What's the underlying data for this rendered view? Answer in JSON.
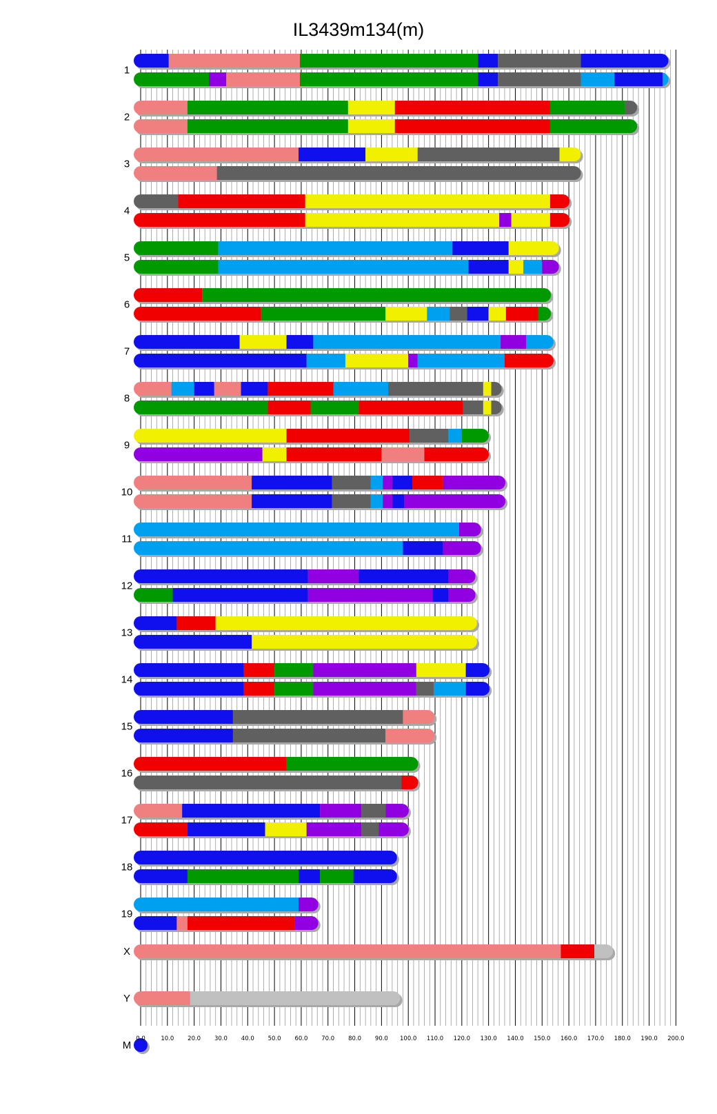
{
  "chart_data": {
    "type": "chromosome-painting",
    "title": "IL3439m134(m)",
    "xlim": [
      0,
      200
    ],
    "x_ticks": [
      "0.0",
      "10.0",
      "20.0",
      "30.0",
      "40.0",
      "50.0",
      "60.0",
      "70.0",
      "80.0",
      "90.0",
      "100.0",
      "110.0",
      "120.0",
      "130.0",
      "140.0",
      "150.0",
      "160.0",
      "170.0",
      "180.0",
      "190.0",
      "200.0"
    ],
    "palette": {
      "B": "#1010ee",
      "P": "#f08080",
      "G": "#009900",
      "D": "#606060",
      "C": "#00a0f0",
      "V": "#9000e0",
      "Y": "#f0f000",
      "R": "#f00000",
      "L": "#c0c0c0"
    },
    "chromosomes": [
      {
        "name": "1",
        "length": 197.2,
        "haplotypes": [
          [
            [
              "B",
              0,
              10.5
            ],
            [
              "P",
              10.5,
              59.5
            ],
            [
              "G",
              59.5,
              126
            ],
            [
              "B",
              126,
              133.5
            ],
            [
              "D",
              133.5,
              164.5
            ],
            [
              "B",
              164.5,
              197.2
            ]
          ],
          [
            [
              "G",
              0,
              25.5
            ],
            [
              "V",
              25.5,
              32
            ],
            [
              "P",
              32,
              59.5
            ],
            [
              "G",
              59.5,
              126
            ],
            [
              "B",
              126,
              133.5
            ],
            [
              "D",
              133.5,
              164.5
            ],
            [
              "C",
              164.5,
              177
            ],
            [
              "B",
              177,
              195
            ],
            [
              "C",
              195,
              197.2
            ]
          ]
        ]
      },
      {
        "name": "2",
        "length": 185.5,
        "haplotypes": [
          [
            [
              "P",
              0,
              17.5
            ],
            [
              "G",
              17.5,
              77.5
            ],
            [
              "Y",
              77.5,
              95
            ],
            [
              "R",
              95,
              153
            ],
            [
              "G",
              153,
              181
            ],
            [
              "D",
              181,
              185.5
            ]
          ],
          [
            [
              "P",
              0,
              17.5
            ],
            [
              "G",
              17.5,
              77.5
            ],
            [
              "Y",
              77.5,
              95
            ],
            [
              "R",
              95,
              153
            ],
            [
              "G",
              153,
              185.5
            ]
          ]
        ]
      },
      {
        "name": "3",
        "length": 164.5,
        "haplotypes": [
          [
            [
              "P",
              0,
              59
            ],
            [
              "B",
              59,
              84
            ],
            [
              "Y",
              84,
              103.5
            ],
            [
              "D",
              103.5,
              156.5
            ],
            [
              "Y",
              156.5,
              164.5
            ]
          ],
          [
            [
              "P",
              0,
              28.5
            ],
            [
              "D",
              28.5,
              164.5
            ]
          ]
        ]
      },
      {
        "name": "4",
        "length": 160.3,
        "haplotypes": [
          [
            [
              "D",
              0,
              14
            ],
            [
              "R",
              14,
              61.5
            ],
            [
              "Y",
              61.5,
              153
            ],
            [
              "R",
              153,
              160.3
            ]
          ],
          [
            [
              "R",
              0,
              61.5
            ],
            [
              "Y",
              61.5,
              134
            ],
            [
              "V",
              134,
              138.5
            ],
            [
              "Y",
              138.5,
              153
            ],
            [
              "R",
              153,
              160.3
            ]
          ]
        ]
      },
      {
        "name": "5",
        "length": 156.3,
        "haplotypes": [
          [
            [
              "G",
              0,
              29
            ],
            [
              "C",
              29,
              116.5
            ],
            [
              "B",
              116.5,
              137.5
            ],
            [
              "Y",
              137.5,
              156.3
            ]
          ],
          [
            [
              "G",
              0,
              29
            ],
            [
              "C",
              29,
              122.5
            ],
            [
              "B",
              122.5,
              137.5
            ],
            [
              "Y",
              137.5,
              143
            ],
            [
              "C",
              143,
              150
            ],
            [
              "V",
              150,
              156.3
            ]
          ]
        ]
      },
      {
        "name": "6",
        "length": 153.3,
        "haplotypes": [
          [
            [
              "R",
              0,
              23
            ],
            [
              "G",
              23,
              153.3
            ]
          ],
          [
            [
              "R",
              0,
              45
            ],
            [
              "G",
              45,
              91.5
            ],
            [
              "Y",
              91.5,
              107
            ],
            [
              "C",
              107,
              115.5
            ],
            [
              "D",
              115.5,
              122
            ],
            [
              "B",
              122,
              130
            ],
            [
              "Y",
              130,
              136.5
            ],
            [
              "R",
              136.5,
              148.5
            ],
            [
              "G",
              148.5,
              153.3
            ]
          ]
        ]
      },
      {
        "name": "7",
        "length": 154.3,
        "haplotypes": [
          [
            [
              "B",
              0,
              37
            ],
            [
              "Y",
              37,
              54.5
            ],
            [
              "B",
              54.5,
              64.5
            ],
            [
              "C",
              64.5,
              134.5
            ],
            [
              "V",
              134.5,
              144
            ],
            [
              "C",
              144,
              154.3
            ]
          ],
          [
            [
              "B",
              0,
              62
            ],
            [
              "C",
              62,
              76.5
            ],
            [
              "Y",
              76.5,
              100
            ],
            [
              "V",
              100,
              103.5
            ],
            [
              "C",
              103.5,
              136
            ],
            [
              "R",
              136,
              154.3
            ]
          ]
        ]
      },
      {
        "name": "8",
        "length": 134.9,
        "haplotypes": [
          [
            [
              "P",
              0,
              11.5
            ],
            [
              "C",
              11.5,
              20
            ],
            [
              "B",
              20,
              27.5
            ],
            [
              "P",
              27.5,
              37.5
            ],
            [
              "B",
              37.5,
              47.5
            ],
            [
              "R",
              47.5,
              72
            ],
            [
              "C",
              72,
              92.5
            ],
            [
              "D",
              92.5,
              128
            ],
            [
              "Y",
              128,
              131
            ],
            [
              "D",
              131,
              134.9
            ]
          ],
          [
            [
              "G",
              0,
              47.5
            ],
            [
              "R",
              47.5,
              63.5
            ],
            [
              "G",
              63.5,
              81.5
            ],
            [
              "R",
              81.5,
              120.5
            ],
            [
              "D",
              120.5,
              128
            ],
            [
              "Y",
              128,
              131
            ],
            [
              "D",
              131,
              134.9
            ]
          ]
        ]
      },
      {
        "name": "9",
        "length": 130.1,
        "haplotypes": [
          [
            [
              "Y",
              0,
              54.5
            ],
            [
              "R",
              54.5,
              100.5
            ],
            [
              "D",
              100.5,
              115
            ],
            [
              "C",
              115,
              120
            ],
            [
              "G",
              120,
              130.1
            ]
          ],
          [
            [
              "V",
              0,
              45.5
            ],
            [
              "Y",
              45.5,
              54.5
            ],
            [
              "R",
              54.5,
              90
            ],
            [
              "P",
              90,
              106
            ],
            [
              "R",
              106,
              130.1
            ]
          ]
        ]
      },
      {
        "name": "10",
        "length": 136.3,
        "haplotypes": [
          [
            [
              "P",
              0,
              41.5
            ],
            [
              "B",
              41.5,
              71.5
            ],
            [
              "D",
              71.5,
              86
            ],
            [
              "C",
              86,
              90.5
            ],
            [
              "V",
              90.5,
              94
            ],
            [
              "B",
              94,
              101.5
            ],
            [
              "R",
              101.5,
              113
            ],
            [
              "V",
              113,
              136.3
            ]
          ],
          [
            [
              "P",
              0,
              41.5
            ],
            [
              "B",
              41.5,
              71.5
            ],
            [
              "D",
              71.5,
              86
            ],
            [
              "C",
              86,
              90.5
            ],
            [
              "V",
              90.5,
              94
            ],
            [
              "B",
              94,
              98.5
            ],
            [
              "V",
              98.5,
              136.3
            ]
          ]
        ]
      },
      {
        "name": "11",
        "length": 127.2,
        "haplotypes": [
          [
            [
              "C",
              0,
              119
            ],
            [
              "V",
              119,
              127.2
            ]
          ],
          [
            [
              "C",
              0,
              98
            ],
            [
              "B",
              98,
              113
            ],
            [
              "V",
              113,
              127.2
            ]
          ]
        ]
      },
      {
        "name": "12",
        "length": 125.1,
        "haplotypes": [
          [
            [
              "B",
              0,
              62.5
            ],
            [
              "V",
              62.5,
              81.5
            ],
            [
              "B",
              81.5,
              115
            ],
            [
              "V",
              115,
              125.1
            ]
          ],
          [
            [
              "G",
              0,
              12
            ],
            [
              "B",
              12,
              62.5
            ],
            [
              "V",
              62.5,
              109
            ],
            [
              "B",
              109,
              115
            ],
            [
              "V",
              115,
              125.1
            ]
          ]
        ]
      },
      {
        "name": "13",
        "length": 125.7,
        "haplotypes": [
          [
            [
              "B",
              0,
              13.5
            ],
            [
              "R",
              13.5,
              28
            ],
            [
              "Y",
              28,
              125.7
            ]
          ],
          [
            [
              "B",
              0,
              41.5
            ],
            [
              "Y",
              41.5,
              125.7
            ]
          ]
        ]
      },
      {
        "name": "14",
        "length": 130.4,
        "haplotypes": [
          [
            [
              "B",
              0,
              38.5
            ],
            [
              "R",
              38.5,
              50
            ],
            [
              "G",
              50,
              64.5
            ],
            [
              "V",
              64.5,
              103
            ],
            [
              "Y",
              103,
              121.5
            ],
            [
              "B",
              121.5,
              130.4
            ]
          ],
          [
            [
              "B",
              0,
              38.5
            ],
            [
              "R",
              38.5,
              50
            ],
            [
              "G",
              50,
              64.5
            ],
            [
              "V",
              64.5,
              103
            ],
            [
              "D",
              103,
              109.5
            ],
            [
              "C",
              109.5,
              121.5
            ],
            [
              "B",
              121.5,
              130.4
            ]
          ]
        ]
      },
      {
        "name": "15",
        "length": 109.8,
        "haplotypes": [
          [
            [
              "B",
              0,
              34.5
            ],
            [
              "D",
              34.5,
              98
            ],
            [
              "P",
              98,
              109.8
            ]
          ],
          [
            [
              "B",
              0,
              34.5
            ],
            [
              "D",
              34.5,
              91.5
            ],
            [
              "P",
              91.5,
              109.8
            ]
          ]
        ]
      },
      {
        "name": "16",
        "length": 103.7,
        "haplotypes": [
          [
            [
              "R",
              0,
              54.5
            ],
            [
              "G",
              54.5,
              103.7
            ]
          ],
          [
            [
              "D",
              0,
              97.5
            ],
            [
              "R",
              97.5,
              103.7
            ]
          ]
        ]
      },
      {
        "name": "17",
        "length": 100.2,
        "haplotypes": [
          [
            [
              "P",
              0,
              15.5
            ],
            [
              "B",
              15.5,
              67
            ],
            [
              "V",
              67,
              82.5
            ],
            [
              "D",
              82.5,
              91.5
            ],
            [
              "V",
              91.5,
              100.2
            ]
          ],
          [
            [
              "R",
              0,
              17.5
            ],
            [
              "B",
              17.5,
              46.5
            ],
            [
              "Y",
              46.5,
              62
            ],
            [
              "V",
              62,
              82.5
            ],
            [
              "D",
              82.5,
              89
            ],
            [
              "V",
              89,
              100.2
            ]
          ]
        ]
      },
      {
        "name": "18",
        "length": 95.8,
        "haplotypes": [
          [
            [
              "B",
              0,
              95.8
            ]
          ],
          [
            [
              "B",
              0,
              17.5
            ],
            [
              "G",
              17.5,
              59
            ],
            [
              "B",
              59,
              67
            ],
            [
              "G",
              67,
              79.5
            ],
            [
              "B",
              79.5,
              95.8
            ]
          ]
        ]
      },
      {
        "name": "19",
        "length": 66.4,
        "haplotypes": [
          [
            [
              "C",
              0,
              59
            ],
            [
              "V",
              59,
              66.4
            ]
          ],
          [
            [
              "B",
              0,
              13.5
            ],
            [
              "P",
              13.5,
              17.5
            ],
            [
              "R",
              17.5,
              57.5
            ],
            [
              "V",
              57.5,
              66.4
            ]
          ]
        ]
      },
      {
        "name": "X",
        "length": 176.5,
        "haplotypes": [
          [
            [
              "P",
              0,
              157
            ],
            [
              "R",
              157,
              169.5
            ],
            [
              "L",
              169.5,
              176.5
            ]
          ]
        ]
      },
      {
        "name": "Y",
        "length": 97.0,
        "haplotypes": [
          [
            [
              "P",
              0,
              18.5
            ],
            [
              "L",
              18.5,
              97.0
            ]
          ]
        ]
      },
      {
        "name": "M",
        "length": 2.5,
        "haplotypes": [
          [
            [
              "B",
              0,
              2.5
            ]
          ]
        ]
      }
    ]
  }
}
